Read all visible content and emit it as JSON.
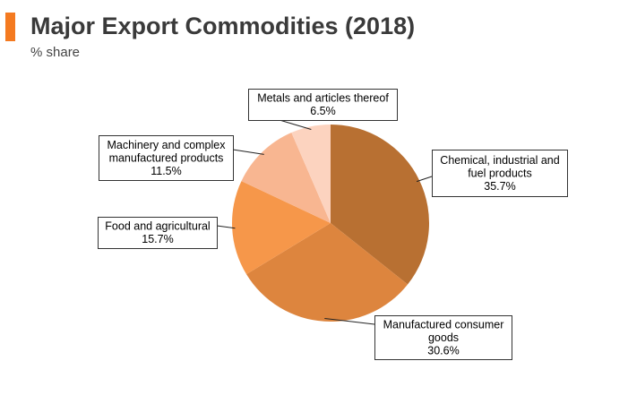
{
  "header": {
    "title": "Major Export Commodities (2018)",
    "subtitle": "% share",
    "accent_color": "#f47a20"
  },
  "chart_data": {
    "type": "pie",
    "title": "Major Export Commodities (2018)",
    "subtitle": "% share",
    "slices": [
      {
        "name": "Chemical, industrial and fuel products",
        "value": 35.7,
        "label_lines": [
          "Chemical, industrial and",
          "fuel products",
          "35.7%"
        ],
        "color": "#b87032"
      },
      {
        "name": "Manufactured consumer goods",
        "value": 30.6,
        "label_lines": [
          "Manufactured consumer",
          "goods",
          "30.6%"
        ],
        "color": "#dd853e"
      },
      {
        "name": "Food and agricultural",
        "value": 15.7,
        "label_lines": [
          "Food and agricultural",
          "15.7%"
        ],
        "color": "#f6974a"
      },
      {
        "name": "Machinery and complex manufactured products",
        "value": 11.5,
        "label_lines": [
          "Machinery and complex",
          "manufactured products",
          "11.5%"
        ],
        "color": "#f8b691"
      },
      {
        "name": "Metals and articles thereof",
        "value": 6.5,
        "label_lines": [
          "Metals and articles thereof",
          "6.5%"
        ],
        "color": "#fcd3bf"
      }
    ],
    "start": "12 o'clock",
    "direction": "clockwise",
    "legend": "none"
  }
}
